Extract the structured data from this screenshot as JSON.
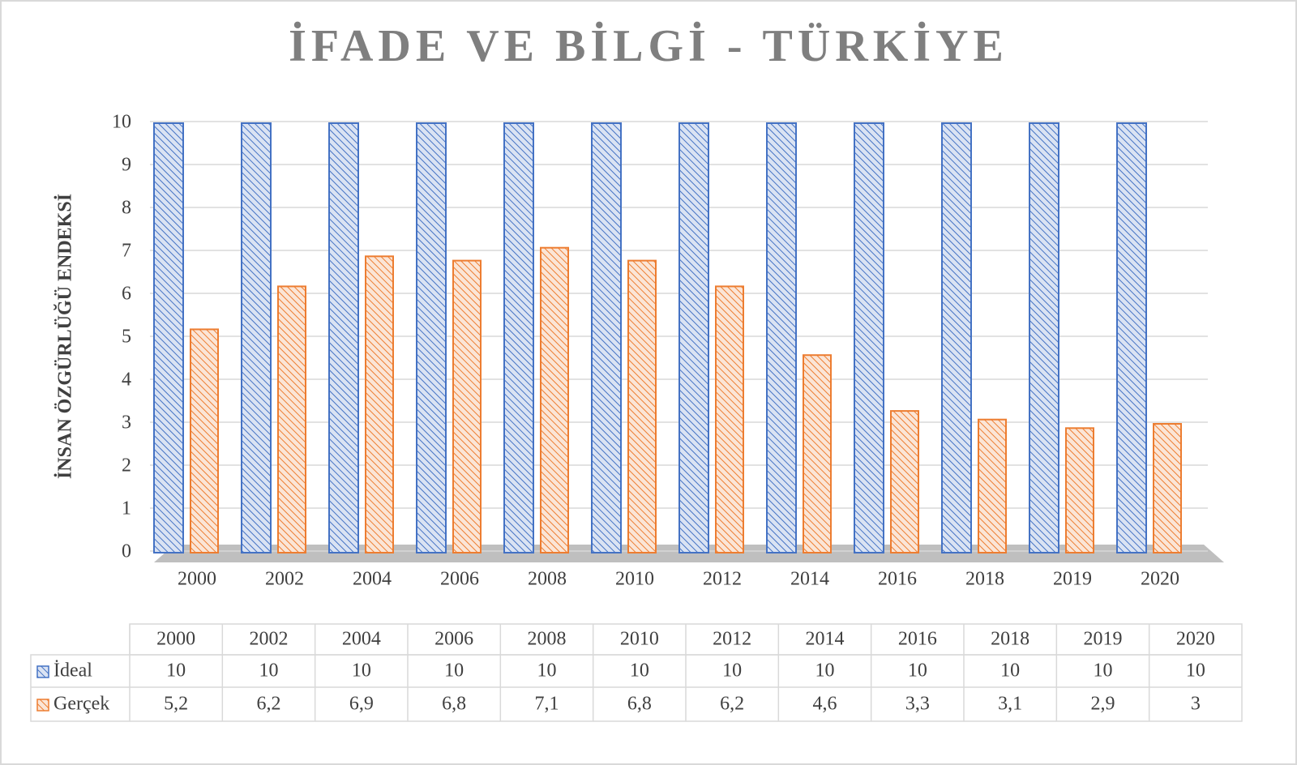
{
  "chart_data": {
    "type": "bar",
    "title": "İFADE VE BİLGİ - TÜRKİYE",
    "y_label": "İNSAN ÖZGÜRLÜĞÜ ENDEKSİ",
    "categories": [
      "2000",
      "2002",
      "2004",
      "2006",
      "2008",
      "2010",
      "2012",
      "2014",
      "2016",
      "2018",
      "2019",
      "2020"
    ],
    "series": [
      {
        "name": "İdeal",
        "color": "#4472c4",
        "values": [
          10,
          10,
          10,
          10,
          10,
          10,
          10,
          10,
          10,
          10,
          10,
          10
        ]
      },
      {
        "name": "Gerçek",
        "color": "#ed7d31",
        "values": [
          5.2,
          6.2,
          6.9,
          6.8,
          7.1,
          6.8,
          6.2,
          4.6,
          3.3,
          3.1,
          2.9,
          3
        ],
        "value_labels": [
          "5,2",
          "6,2",
          "6,9",
          "6,8",
          "7,1",
          "6,8",
          "6,2",
          "4,6",
          "3,3",
          "3,1",
          "2,9",
          "3"
        ]
      }
    ],
    "ylim": [
      0,
      10
    ],
    "yticks": [
      0,
      1,
      2,
      3,
      4,
      5,
      6,
      7,
      8,
      9,
      10
    ],
    "grid": true
  }
}
